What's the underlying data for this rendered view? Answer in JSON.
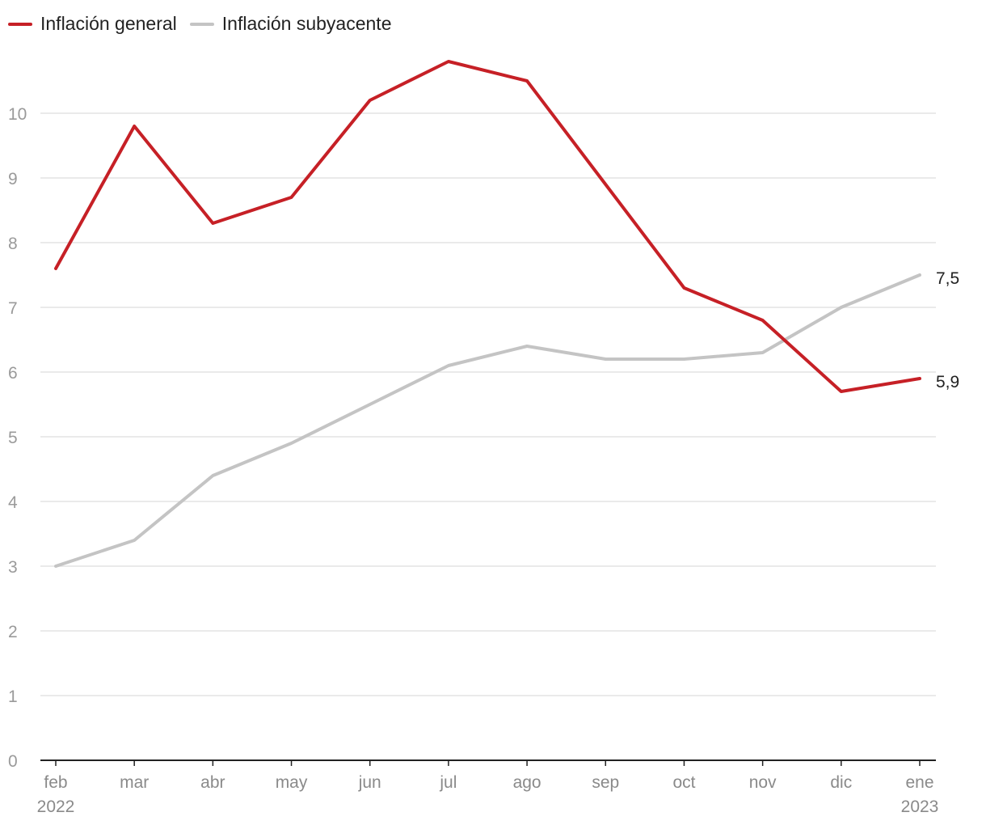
{
  "chart_data": {
    "type": "line",
    "title": "",
    "xlabel": "",
    "ylabel": "",
    "categories": [
      "feb",
      "mar",
      "abr",
      "may",
      "jun",
      "jul",
      "ago",
      "sep",
      "oct",
      "nov",
      "dic",
      "ene"
    ],
    "year_labels": [
      {
        "index": 0,
        "text": "2022"
      },
      {
        "index": 11,
        "text": "2023"
      }
    ],
    "ylim": [
      0,
      10.8
    ],
    "yticks": [
      0,
      1,
      2,
      3,
      4,
      5,
      6,
      7,
      8,
      9,
      10
    ],
    "grid": true,
    "legend_position": "top-left",
    "series": [
      {
        "name": "Inflación general",
        "color": "#c62026",
        "values": [
          7.6,
          9.8,
          8.3,
          8.7,
          10.2,
          10.8,
          10.5,
          8.9,
          7.3,
          6.8,
          5.7,
          5.9
        ],
        "end_label": "5,9"
      },
      {
        "name": "Inflación subyacente",
        "color": "#c4c4c4",
        "values": [
          3.0,
          3.4,
          4.4,
          4.9,
          5.5,
          6.1,
          6.4,
          6.2,
          6.2,
          6.3,
          7.0,
          7.5
        ],
        "end_label": "7,5"
      }
    ]
  }
}
